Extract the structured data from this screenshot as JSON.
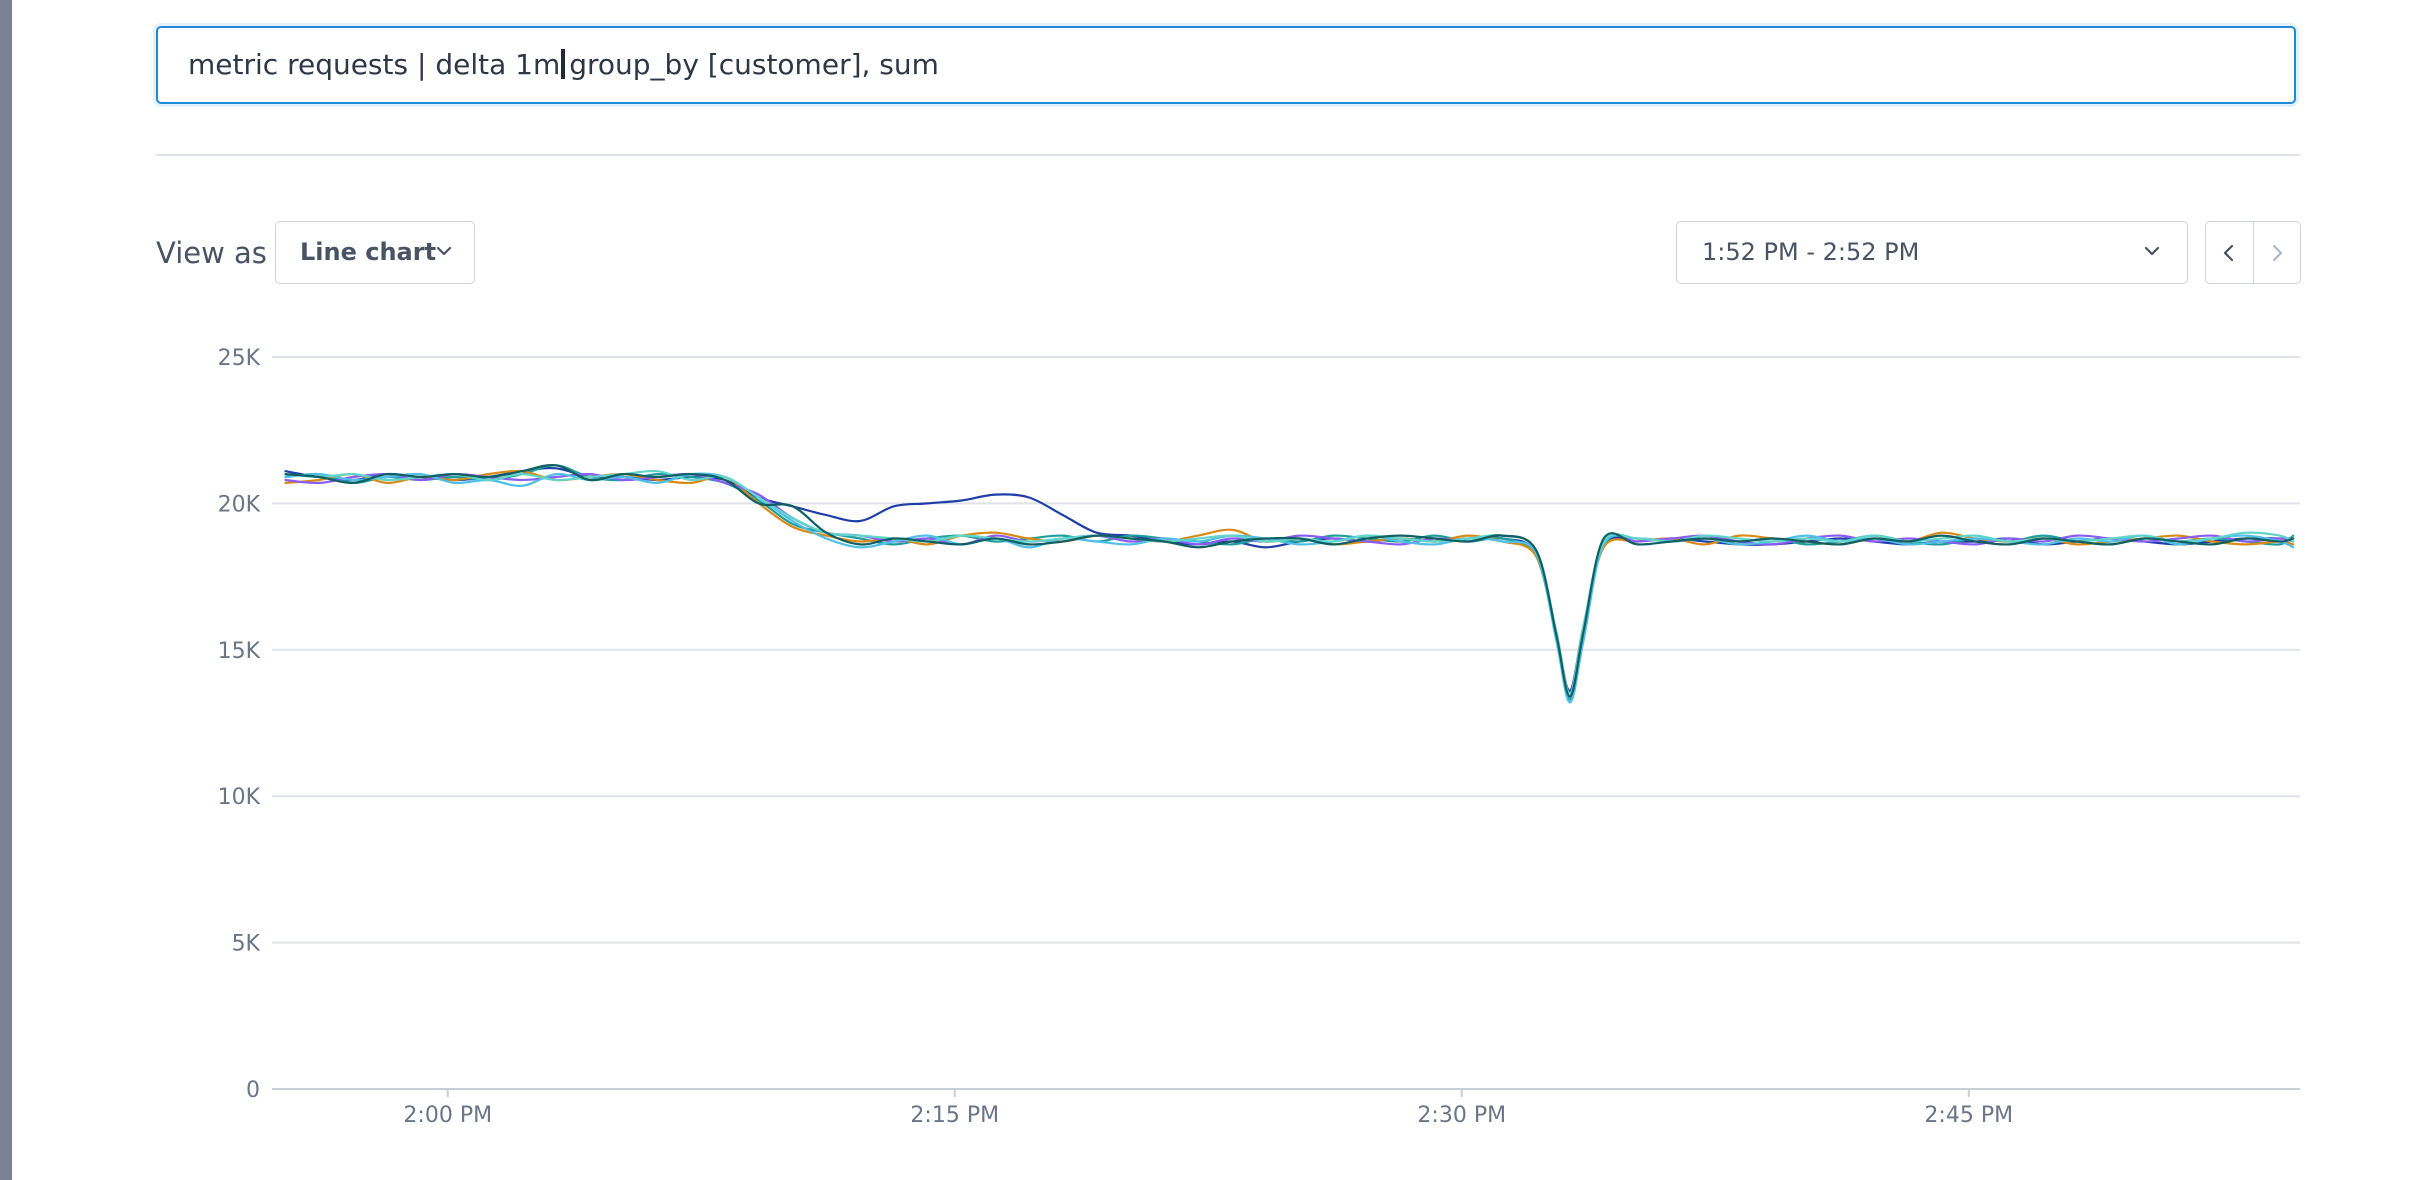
{
  "query": {
    "before_caret": "metric requests | delta 1m",
    "after_caret": "group_by [customer], sum"
  },
  "controls": {
    "view_as_label": "View as",
    "chart_type_value": "Line chart",
    "time_range_value": "1:52 PM - 2:52 PM",
    "prev_icon": "chevron-left-icon",
    "next_icon": "chevron-right-icon",
    "dropdown_icon": "chevron-down-icon"
  },
  "chart_data": {
    "type": "line",
    "title": "",
    "xlabel": "",
    "ylabel": "",
    "xlim_minutes": [
      -5.2,
      54.8
    ],
    "ylim": [
      0,
      25000
    ],
    "y_ticks": [
      0,
      5000,
      10000,
      15000,
      20000,
      25000
    ],
    "y_tick_labels": [
      "0",
      "5K",
      "10K",
      "15K",
      "20K",
      "25K"
    ],
    "x_ticks": [
      0,
      15,
      30,
      45
    ],
    "x_tick_labels": [
      "2:00 PM",
      "2:15 PM",
      "2:30 PM",
      "2:45 PM"
    ],
    "grid": true,
    "legend": "none",
    "x_minutes": [
      -4.8,
      -3.8,
      -2.8,
      -1.8,
      -0.8,
      0.2,
      1.2,
      2.2,
      3.2,
      4.2,
      5.2,
      6.2,
      7.2,
      8.2,
      9.2,
      10.2,
      11.2,
      12.2,
      13.2,
      14.2,
      15.2,
      16.2,
      17.2,
      18.2,
      19.2,
      20.2,
      21.2,
      22.2,
      23.2,
      24.2,
      25.2,
      26.2,
      27.2,
      28.2,
      29.2,
      30.2,
      31.2,
      32.2,
      32.8,
      33.2,
      33.6,
      34.2,
      35.2,
      36.2,
      37.2,
      38.2,
      39.2,
      40.2,
      41.2,
      42.2,
      43.2,
      44.2,
      45.2,
      46.2,
      47.2,
      48.2,
      49.2,
      50.2,
      51.2,
      52.2,
      53.2,
      54.2,
      54.6
    ],
    "series": [
      {
        "color": "#1f3fa8",
        "values": [
          21100,
          20900,
          20800,
          21000,
          20900,
          20800,
          20900,
          21100,
          21200,
          20900,
          20900,
          20800,
          20900,
          20800,
          20200,
          19900,
          19600,
          19400,
          19900,
          20000,
          20100,
          20300,
          20200,
          19600,
          19000,
          18900,
          18700,
          18600,
          18700,
          18500,
          18700,
          18800,
          18700,
          18800,
          18700,
          18800,
          18800,
          18300,
          15500,
          13600,
          15800,
          18600,
          18700,
          18800,
          18700,
          18600,
          18600,
          18700,
          18800,
          18700,
          18600,
          18700,
          18700,
          18800,
          18600,
          18700,
          18800,
          18700,
          18600,
          18700,
          18800,
          18800,
          18800
        ]
      },
      {
        "color": "#1f9e9e",
        "values": [
          20900,
          21000,
          20700,
          20900,
          20800,
          20900,
          20800,
          21000,
          21300,
          20900,
          20800,
          21000,
          20900,
          20700,
          20100,
          19300,
          19000,
          18800,
          18600,
          18800,
          18900,
          18700,
          18800,
          18900,
          18700,
          18900,
          18800,
          18700,
          18600,
          18800,
          18700,
          18900,
          18800,
          18700,
          18900,
          18700,
          18800,
          18200,
          15400,
          13300,
          15600,
          18600,
          18800,
          18700,
          18800,
          18700,
          18800,
          18600,
          18700,
          18900,
          18700,
          18600,
          18800,
          18700,
          18900,
          18700,
          18600,
          18800,
          18700,
          18800,
          18700,
          18600,
          18900
        ]
      },
      {
        "color": "#d98a16",
        "values": [
          20700,
          20800,
          21000,
          20700,
          20900,
          20800,
          21000,
          21100,
          20800,
          20900,
          21000,
          20800,
          20700,
          20900,
          20000,
          19200,
          18900,
          18700,
          18800,
          18600,
          18900,
          19000,
          18800,
          18700,
          18900,
          18800,
          18700,
          18900,
          19100,
          18700,
          18800,
          18600,
          18700,
          18800,
          18700,
          18900,
          18700,
          18200,
          15600,
          13500,
          15700,
          18500,
          18700,
          18800,
          18600,
          18900,
          18800,
          18700,
          18600,
          18800,
          18700,
          19000,
          18800,
          18700,
          18800,
          18600,
          18700,
          18800,
          18900,
          18700,
          18600,
          18700,
          18600
        ]
      },
      {
        "color": "#8a5cf6",
        "values": [
          20800,
          20700,
          20900,
          21000,
          20800,
          21000,
          20900,
          20800,
          20900,
          21000,
          20800,
          20900,
          21000,
          20700,
          20300,
          19500,
          19000,
          18900,
          18700,
          18800,
          18600,
          18900,
          18700,
          18800,
          18900,
          18700,
          18800,
          18600,
          18800,
          18700,
          18900,
          18800,
          18700,
          18600,
          18800,
          18700,
          18900,
          18400,
          15500,
          13400,
          15700,
          18700,
          18700,
          18800,
          18900,
          18700,
          18600,
          18800,
          18900,
          18700,
          18800,
          18700,
          18600,
          18800,
          18700,
          18900,
          18800,
          18700,
          18800,
          18900,
          18700,
          18800,
          18700
        ]
      },
      {
        "color": "#4fbfe8",
        "values": [
          20900,
          21000,
          20800,
          20900,
          21000,
          20700,
          20800,
          20600,
          21000,
          20800,
          20900,
          20700,
          21000,
          20900,
          20200,
          19400,
          18800,
          18500,
          18700,
          18900,
          18600,
          18800,
          18500,
          18800,
          18700,
          18600,
          18800,
          18700,
          18900,
          18800,
          18600,
          18700,
          18900,
          18700,
          18600,
          18800,
          18700,
          18300,
          15300,
          13200,
          15300,
          18600,
          18800,
          18700,
          18800,
          18600,
          18700,
          18900,
          18700,
          18800,
          18600,
          18700,
          18800,
          18700,
          18600,
          18800,
          18700,
          18900,
          18600,
          18800,
          18900,
          18700,
          18500
        ]
      },
      {
        "color": "#5fd6c9",
        "values": [
          21000,
          20900,
          21000,
          20800,
          20900,
          21000,
          20800,
          21000,
          20800,
          20900,
          21000,
          21100,
          20800,
          20900,
          20200,
          19500,
          19000,
          18900,
          18800,
          18700,
          18900,
          18800,
          18700,
          18800,
          18900,
          18800,
          18700,
          18800,
          18900,
          18700,
          18800,
          18700,
          18900,
          18800,
          18700,
          18800,
          18900,
          18400,
          15600,
          13500,
          15800,
          18700,
          18800,
          18700,
          18900,
          18800,
          18700,
          18800,
          18700,
          18900,
          18700,
          18800,
          18900,
          18700,
          18800,
          18700,
          18800,
          18900,
          18700,
          18800,
          19000,
          18900,
          18700
        ]
      },
      {
        "color": "#0f5f63",
        "values": [
          21000,
          20900,
          20700,
          21000,
          20900,
          21000,
          20900,
          21100,
          21300,
          20800,
          21000,
          20900,
          21000,
          20800,
          20000,
          19900,
          19000,
          18600,
          18800,
          18700,
          18600,
          18800,
          18600,
          18700,
          18900,
          18800,
          18700,
          18500,
          18700,
          18800,
          18800,
          18600,
          18800,
          18900,
          18800,
          18700,
          18900,
          18400,
          15500,
          13400,
          15600,
          18800,
          18600,
          18700,
          18800,
          18700,
          18800,
          18700,
          18600,
          18800,
          18700,
          18900,
          18700,
          18600,
          18800,
          18700,
          18600,
          18800,
          18700,
          18600,
          18800,
          18700,
          18800
        ]
      }
    ]
  }
}
